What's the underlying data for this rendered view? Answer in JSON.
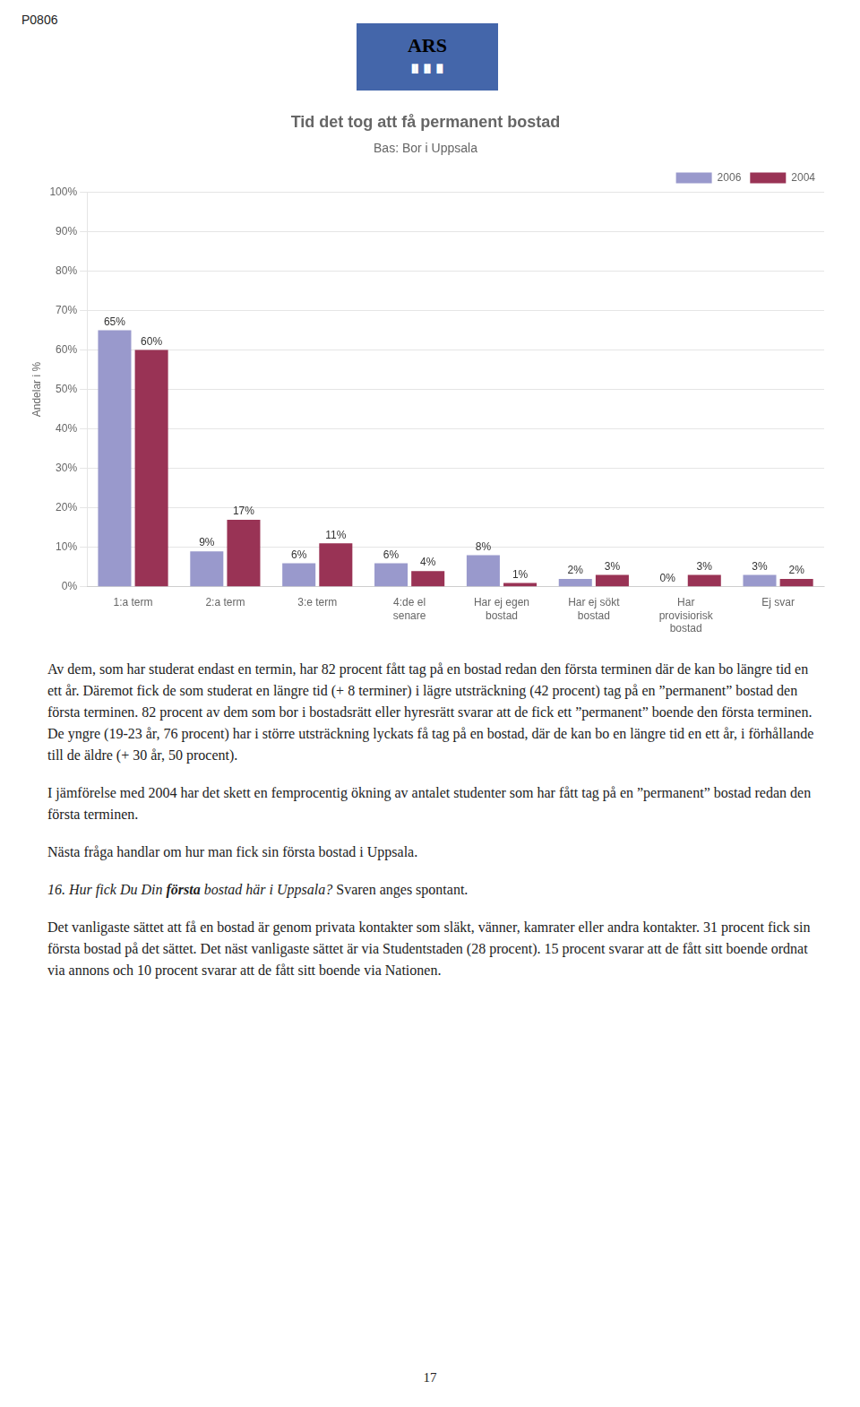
{
  "chart_data": {
    "type": "bar",
    "title": "Tid det tog att få permanent bostad",
    "subtitle": "Bas: Bor i Uppsala",
    "ylabel": "Andelar i %",
    "categories": [
      "1:a term",
      "2:a term",
      "3:e term",
      "4:de el\nsenare",
      "Har ej egen\nbostad",
      "Har ej sökt\nbostad",
      "Har\nprovisiorisk\nbostad",
      "Ej svar"
    ],
    "series": [
      {
        "name": "2006",
        "color": "#9999CC",
        "values": [
          65,
          9,
          6,
          6,
          8,
          2,
          0,
          3
        ],
        "value_labels": [
          "65%",
          "9%",
          "6%",
          "6%",
          "8%",
          "2%",
          "0%",
          "3%"
        ]
      },
      {
        "name": "2004",
        "color": "#993355",
        "values": [
          60,
          17,
          11,
          4,
          1,
          3,
          3,
          2
        ],
        "value_labels": [
          "60%",
          "17%",
          "11%",
          "4%",
          "1%",
          "3%",
          "3%",
          "2%"
        ]
      }
    ],
    "ylim": [
      0,
      100
    ],
    "yticks": [
      {
        "value": 0,
        "label": "0%"
      },
      {
        "value": 10,
        "label": "10%"
      },
      {
        "value": 20,
        "label": "20%"
      },
      {
        "value": 30,
        "label": "30%"
      },
      {
        "value": 40,
        "label": "40%"
      },
      {
        "value": 50,
        "label": "50%"
      },
      {
        "value": 60,
        "label": "60%"
      },
      {
        "value": 70,
        "label": "70%"
      },
      {
        "value": 80,
        "label": "80%"
      },
      {
        "value": 90,
        "label": "90%"
      },
      {
        "value": 100,
        "label": "100%"
      }
    ],
    "grid": true,
    "legend": "top-right",
    "data_labels": true,
    "header_label": "P0806",
    "logo_text": [
      "ARS",
      "▐▌▐▌▐▌"
    ],
    "paragraphs": [
      "Av dem, som har studerat endast en termin, har 82 procent fått tag på en bostad redan den första terminen där de kan bo längre tid en ett år. Däremot fick de som studerat en längre tid (+ 8 terminer) i lägre utsträckning (42 procent) tag på en ”permanent” bostad den första terminen. 82 procent av dem som bor i bostadsrätt eller hyresrätt svarar att de fick ett ”permanent” boende den första terminen. De yngre (19-23 år, 76 procent) har i större utsträckning lyckats få tag på en bostad, där de kan bo en längre tid en ett år, i förhållande till de äldre (+ 30 år, 50 procent).",
      "I jämförelse med 2004 har det skett en femprocentig ökning av antalet studenter som har fått tag på en ”permanent” bostad redan den första terminen.",
      "Nästa fråga handlar om hur man fick sin första bostad i Uppsala."
    ],
    "question": [
      "16. Hur fick Du Din ",
      "första",
      " bostad här i Uppsala?",
      " Svaren anges spontant."
    ],
    "closing_paragraph": "Det vanligaste sättet att få en bostad är genom privata kontakter som släkt, vänner, kamrater eller andra kontakter. 31 procent fick sin första bostad på det sättet. Det näst vanligaste sättet är via Studentstaden (28 procent). 15 procent svarar att de fått sitt boende ordnat via annons och 10 procent svarar att de fått sitt boende via Nationen.",
    "page_number": "17"
  }
}
